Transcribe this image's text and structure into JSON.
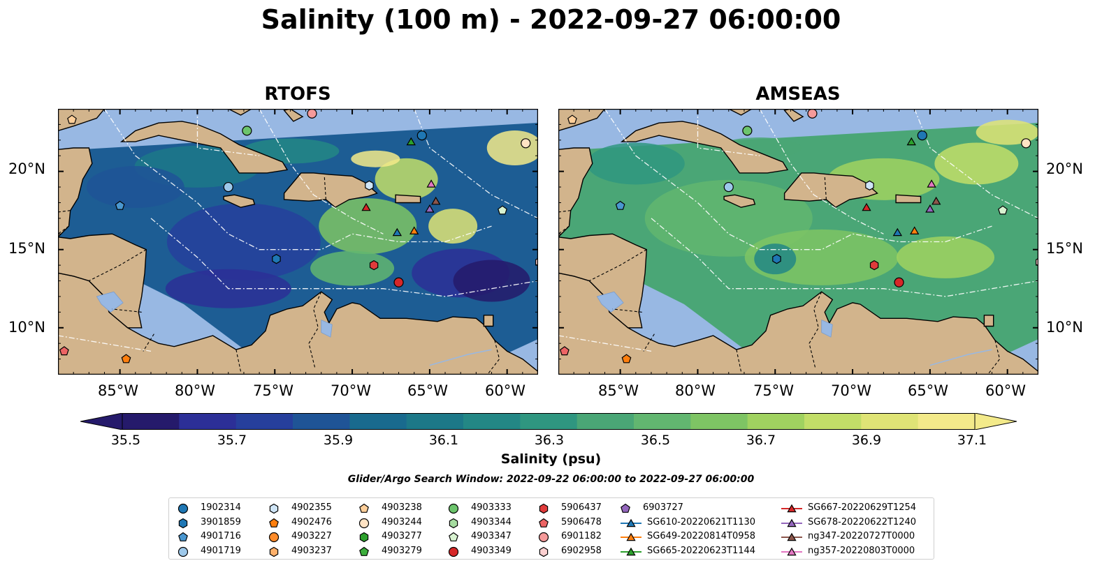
{
  "title": "Salinity (100 m) - 2022-09-27 06:00:00",
  "panels": [
    {
      "title": "RTOFS",
      "style": "rtofs"
    },
    {
      "title": "AMSEAS",
      "style": "amseas"
    }
  ],
  "lat_labels": [
    "20°N",
    "15°N",
    "10°N"
  ],
  "lon_labels": [
    "85°W",
    "80°W",
    "75°W",
    "70°W",
    "65°W",
    "60°W"
  ],
  "map_extent": {
    "lon": [
      -89,
      -58
    ],
    "lat": [
      7,
      24
    ]
  },
  "colorbar": {
    "label": "Salinity (psu)",
    "ticks": [
      "35.5",
      "35.7",
      "35.9",
      "36.1",
      "36.3",
      "36.5",
      "36.7",
      "36.9",
      "37.1"
    ],
    "range": [
      35.4,
      37.2
    ],
    "extend": "both",
    "colors": [
      "#251a6b",
      "#2c2f97",
      "#263f9c",
      "#1f5496",
      "#196a8e",
      "#1c7888",
      "#238785",
      "#2f9680",
      "#4aa676",
      "#62b670",
      "#7ec464",
      "#a0d260",
      "#c2de68",
      "#dfe476",
      "#f3ea8a"
    ]
  },
  "search_window": "Glider/Argo Search Window: 2022-09-22 06:00:00 to 2022-09-27 06:00:00",
  "legend": [
    {
      "label": "1902314",
      "marker": "circle",
      "color": "#1f77b4"
    },
    {
      "label": "3901859",
      "marker": "hexagon",
      "color": "#1f77b4"
    },
    {
      "label": "4901716",
      "marker": "pentagon",
      "color": "#4a97d0"
    },
    {
      "label": "4901719",
      "marker": "circle",
      "color": "#9dc8ea"
    },
    {
      "label": "4902355",
      "marker": "hexagon",
      "color": "#cfe5f7"
    },
    {
      "label": "4902476",
      "marker": "pentagon",
      "color": "#ff7f0e"
    },
    {
      "label": "4903227",
      "marker": "circle",
      "color": "#ff8c2a"
    },
    {
      "label": "4903237",
      "marker": "hexagon",
      "color": "#ffb06a"
    },
    {
      "label": "4903238",
      "marker": "pentagon",
      "color": "#ffcf9a"
    },
    {
      "label": "4903244",
      "marker": "circle",
      "color": "#ffe3c4"
    },
    {
      "label": "4903277",
      "marker": "hexagon",
      "color": "#2ca02c"
    },
    {
      "label": "4903279",
      "marker": "pentagon",
      "color": "#3cae3c"
    },
    {
      "label": "4903333",
      "marker": "circle",
      "color": "#6cc46c"
    },
    {
      "label": "4903344",
      "marker": "hexagon",
      "color": "#a6dca0"
    },
    {
      "label": "4903347",
      "marker": "pentagon",
      "color": "#d8f2d0"
    },
    {
      "label": "4903349",
      "marker": "circle",
      "color": "#d62728"
    },
    {
      "label": "5906437",
      "marker": "hexagon",
      "color": "#e03b3b"
    },
    {
      "label": "5906478",
      "marker": "pentagon",
      "color": "#ec6464"
    },
    {
      "label": "6901182",
      "marker": "circle",
      "color": "#f59a9a"
    },
    {
      "label": "6902958",
      "marker": "hexagon",
      "color": "#fcd0d0"
    },
    {
      "label": "6903727",
      "marker": "pentagon",
      "color": "#9467bd"
    },
    {
      "label": "SG610-20220621T1130",
      "marker": "triangle-line",
      "color": "#1f77b4"
    },
    {
      "label": "SG649-20220814T0958",
      "marker": "triangle-line",
      "color": "#ff7f0e"
    },
    {
      "label": "SG665-20220623T1144",
      "marker": "triangle-line",
      "color": "#2ca02c"
    },
    {
      "label": "SG667-20220629T1254",
      "marker": "triangle-line",
      "color": "#d62728"
    },
    {
      "label": "SG678-20220622T1240",
      "marker": "triangle-line",
      "color": "#9467bd"
    },
    {
      "label": "ng347-20220727T0000",
      "marker": "triangle-line",
      "color": "#8c564b"
    },
    {
      "label": "ng357-20220803T0000",
      "marker": "triangle-line",
      "color": "#e377c2"
    }
  ],
  "observations": [
    {
      "name": "1902314",
      "lon": -65.5,
      "lat": 22.3
    },
    {
      "name": "4903333",
      "lon": -76.8,
      "lat": 22.6
    },
    {
      "name": "4903238",
      "lon": -88.1,
      "lat": 23.3
    },
    {
      "name": "6901182",
      "lon": -72.6,
      "lat": 23.7
    },
    {
      "name": "4903244",
      "lon": -58.8,
      "lat": 21.8
    },
    {
      "name": "4901719",
      "lon": -78.0,
      "lat": 19.0
    },
    {
      "name": "4902355",
      "lon": -68.9,
      "lat": 19.1
    },
    {
      "name": "4901716",
      "lon": -85.0,
      "lat": 17.8
    },
    {
      "name": "4903347",
      "lon": -60.3,
      "lat": 17.5
    },
    {
      "name": "3901859",
      "lon": -74.9,
      "lat": 14.4
    },
    {
      "name": "5906437",
      "lon": -68.6,
      "lat": 14.0
    },
    {
      "name": "4903349",
      "lon": -67.0,
      "lat": 12.9
    },
    {
      "name": "6902958",
      "lon": -57.9,
      "lat": 14.2
    },
    {
      "name": "5906478",
      "lon": -88.6,
      "lat": 8.5
    },
    {
      "name": "4902476",
      "lon": -84.6,
      "lat": 8.0
    },
    {
      "name": "SG665-20220623T1144",
      "lon": -66.2,
      "lat": 21.9
    },
    {
      "name": "SG667-20220629T1254",
      "lon": -69.1,
      "lat": 17.7
    },
    {
      "name": "SG610-20220621T1130",
      "lon": -67.1,
      "lat": 16.1
    },
    {
      "name": "SG649-20220814T0958",
      "lon": -66.0,
      "lat": 16.2
    },
    {
      "name": "ng357-20220803T0000",
      "lon": -64.9,
      "lat": 19.2
    },
    {
      "name": "ng347-20220727T0000",
      "lon": -64.6,
      "lat": 18.1
    },
    {
      "name": "SG678-20220622T1240",
      "lon": -65.0,
      "lat": 17.6
    }
  ]
}
